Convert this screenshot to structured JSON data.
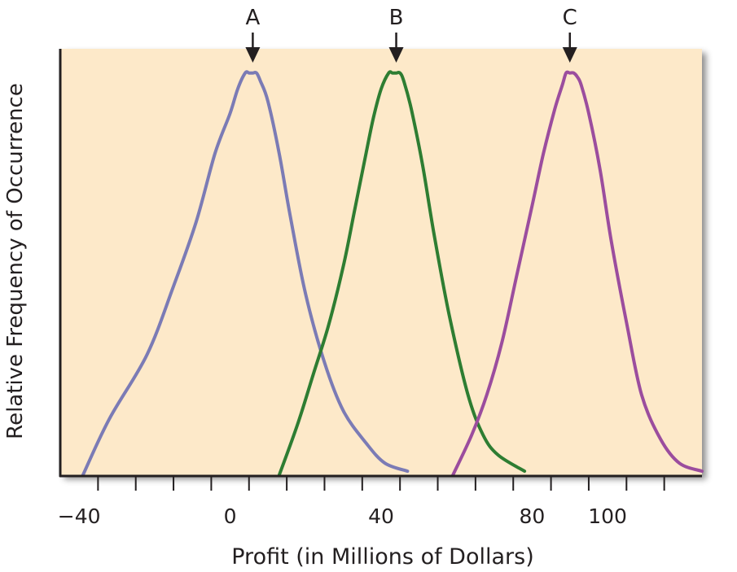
{
  "chart_data": {
    "type": "line",
    "title": "",
    "xlabel": "Profit (in Millions of Dollars)",
    "ylabel": "Relative Frequency of Occurrence",
    "xlim": [
      -45,
      125
    ],
    "ylim": [
      0,
      1.06
    ],
    "x_tick_labels": [
      {
        "value": -40,
        "label": "−40"
      },
      {
        "value": 0,
        "label": "0"
      },
      {
        "value": 40,
        "label": "40"
      },
      {
        "value": 80,
        "label": "80"
      },
      {
        "value": 100,
        "label": "100"
      }
    ],
    "x_tick_marks": [
      -35,
      -25,
      -15,
      -5,
      5,
      15,
      25,
      35,
      45,
      55,
      65,
      75,
      85,
      95,
      105,
      115
    ],
    "grid": false,
    "background_color": "#fde9c9",
    "series": [
      {
        "marker_label": "A",
        "color": "#7b7bb5",
        "peak_x": 6,
        "x": [
          -39,
          -32,
          -22,
          -15,
          -9,
          -4,
          0,
          2,
          4,
          5,
          6,
          7,
          8,
          10,
          13,
          16,
          20,
          25,
          30,
          36,
          41,
          47
        ],
        "y": [
          0.0,
          0.14,
          0.3,
          0.47,
          0.63,
          0.8,
          0.9,
          0.96,
          1.0,
          1.0,
          1.0,
          1.0,
          0.98,
          0.93,
          0.8,
          0.64,
          0.45,
          0.28,
          0.16,
          0.08,
          0.03,
          0.01
        ]
      },
      {
        "marker_label": "B",
        "color": "#2e7d32",
        "peak_x": 44,
        "x": [
          13,
          18,
          22,
          26,
          30,
          33,
          36,
          38,
          40,
          42,
          43,
          44,
          45,
          46,
          48,
          51,
          54,
          58,
          63,
          67,
          71,
          78
        ],
        "y": [
          0.0,
          0.13,
          0.25,
          0.37,
          0.52,
          0.66,
          0.8,
          0.89,
          0.96,
          1.0,
          1.0,
          1.0,
          1.0,
          0.98,
          0.91,
          0.77,
          0.6,
          0.4,
          0.2,
          0.1,
          0.05,
          0.01
        ]
      },
      {
        "marker_label": "C",
        "color": "#9b4d9e",
        "peak_x": 90,
        "x": [
          59,
          64,
          68,
          72,
          76,
          80,
          83,
          86,
          88,
          89,
          90,
          91,
          92,
          93,
          95,
          98,
          101,
          105,
          109,
          114,
          119,
          125
        ],
        "y": [
          0.0,
          0.1,
          0.2,
          0.33,
          0.5,
          0.67,
          0.8,
          0.91,
          0.97,
          1.0,
          1.0,
          1.0,
          0.99,
          0.97,
          0.9,
          0.76,
          0.58,
          0.38,
          0.2,
          0.09,
          0.03,
          0.01
        ]
      }
    ]
  }
}
